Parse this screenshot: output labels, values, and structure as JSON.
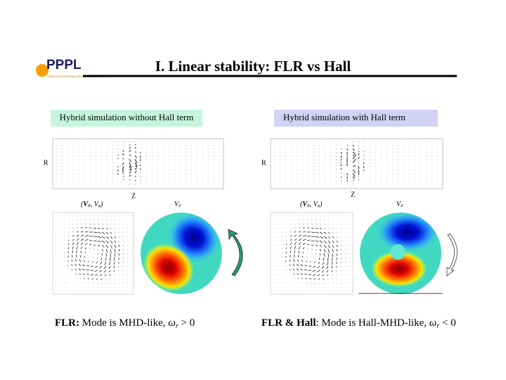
{
  "header": {
    "logo": "PPPL",
    "logo_subtitle": "PRINCETON PLASMA PHYSICS LABORATORY",
    "title": "I.  Linear stability: FLR vs Hall"
  },
  "panels": [
    {
      "label": "Hybrid simulation without Hall term",
      "r_axis": "R",
      "z_axis": "Z",
      "vector_label": {
        "open": "(",
        "a": "V",
        "a_sub": "R",
        "sep": ", ",
        "b": "V",
        "b_sub": "φ",
        "close": ")"
      },
      "scalar_label": {
        "main": "V",
        "sub": "Z"
      },
      "caption": {
        "bold": "FLR:",
        "text": " Mode is MHD-like, ",
        "omega": "ω",
        "omega_sub": "r",
        "relation": " > 0"
      }
    },
    {
      "label": "Hybrid simulation with Hall term",
      "r_axis": "R",
      "z_axis": "Z",
      "vector_label": {
        "open": "(",
        "a": "V",
        "a_sub": "R",
        "sep": ", ",
        "b": "V",
        "b_sub": "φ",
        "close": ")"
      },
      "scalar_label": {
        "main": "V",
        "sub": "Z"
      },
      "caption": {
        "bold": "FLR & Hall",
        "text": ": Mode is Hall-MHD-like, ",
        "omega": "ω",
        "omega_sub": "r",
        "relation": " < 0"
      }
    }
  ]
}
